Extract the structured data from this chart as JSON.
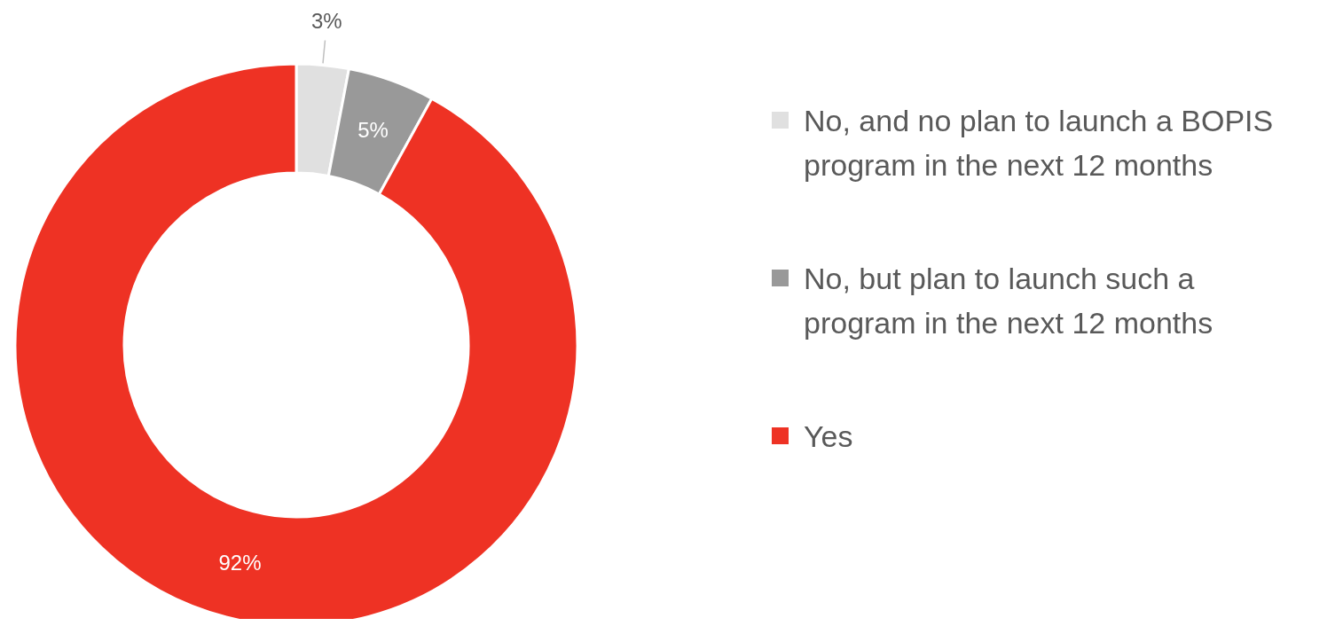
{
  "chart_data": {
    "type": "donut",
    "categories": [
      "No, and no plan to launch a BOPIS program in the next 12 months",
      "No, but plan to launch such a program in the next 12 months",
      "Yes"
    ],
    "values": [
      3,
      5,
      92
    ],
    "colors": [
      "#e0e0e0",
      "#999999",
      "#ee3224"
    ],
    "value_labels": [
      "3%",
      "5%",
      "92%"
    ],
    "legend": "right"
  }
}
